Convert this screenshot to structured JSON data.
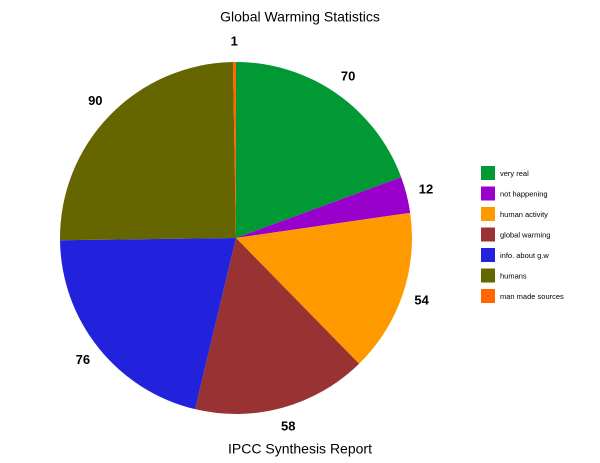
{
  "chart_data": {
    "type": "pie",
    "title": "Global Warming Statistics",
    "xlabel": "IPCC Synthesis Report",
    "categories": [
      "very  real",
      "not happening",
      "human activity",
      "global warming",
      "info. about g.w",
      "humans",
      "man made sources"
    ],
    "values": [
      70,
      12,
      54,
      58,
      76,
      90,
      1
    ],
    "colors": [
      "#009933",
      "#9900cc",
      "#ff9900",
      "#993333",
      "#2222dd",
      "#666600",
      "#ff6600"
    ],
    "legend": "right"
  }
}
